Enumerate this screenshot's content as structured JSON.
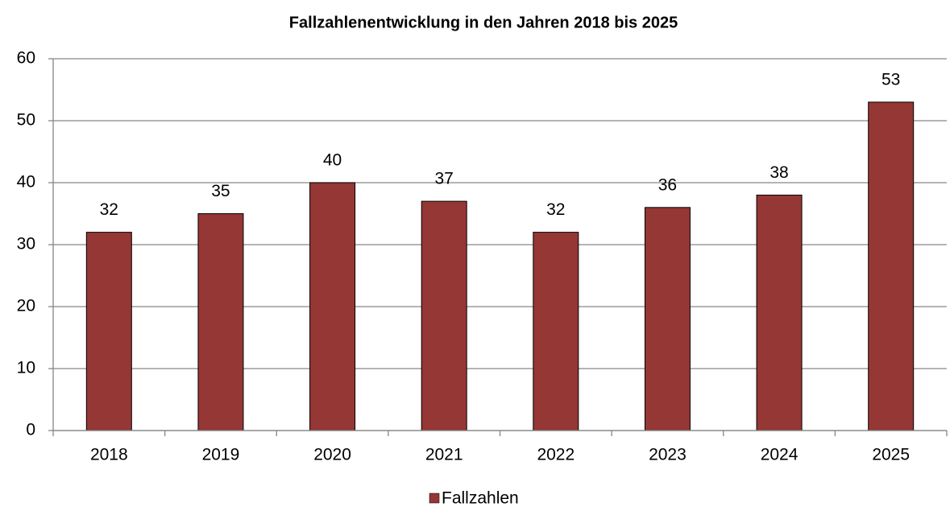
{
  "chart_data": {
    "type": "bar",
    "title": "Fallzahlenentwicklung in den Jahren 2018 bis 2025",
    "categories": [
      "2018",
      "2019",
      "2020",
      "2021",
      "2022",
      "2023",
      "2024",
      "2025"
    ],
    "series": [
      {
        "name": "Fallzahlen",
        "color": "#953735",
        "values": [
          32,
          35,
          40,
          37,
          32,
          36,
          38,
          53
        ]
      }
    ],
    "ylim": [
      0,
      60
    ],
    "yticks": [
      0,
      10,
      20,
      30,
      40,
      50,
      60
    ],
    "grid": true,
    "legend": "bottom",
    "data_labels": true
  }
}
